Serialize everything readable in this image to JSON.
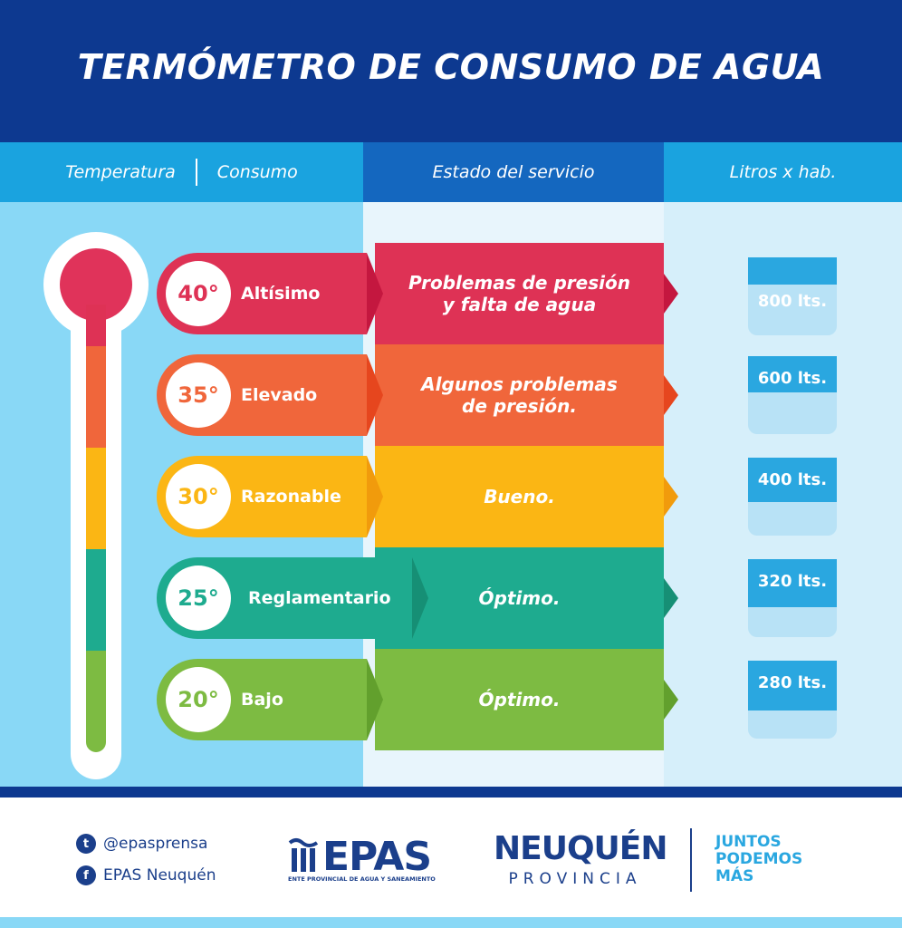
{
  "title": "TERMÓMETRO DE CONSUMO DE AGUA",
  "headers": {
    "temperatura": "Temperatura",
    "consumo": "Consumo",
    "estado": "Estado del servicio",
    "litros": "Litros x hab."
  },
  "rows": [
    {
      "temp": "40°",
      "consumo": "Altísimo",
      "estado": "Problemas de presión\ny falta de agua",
      "litros": "800 lts.",
      "color": "#de3255",
      "dark": "#c4173f",
      "fill": 1.0
    },
    {
      "temp": "35°",
      "consumo": "Elevado",
      "estado": "Algunos problemas\nde presión.",
      "litros": "600 lts.",
      "color": "#f0663b",
      "dark": "#e6461e",
      "fill": 0.75
    },
    {
      "temp": "30°",
      "consumo": "Razonable",
      "estado": "Bueno.",
      "litros": "400 lts.",
      "color": "#fbb614",
      "dark": "#f19b0c",
      "fill": 0.5
    },
    {
      "temp": "25°",
      "consumo": "Reglamentario",
      "estado": "Óptimo.",
      "litros": "320 lts.",
      "color": "#1eab8f",
      "dark": "#168f75",
      "fill": 0.4
    },
    {
      "temp": "20°",
      "consumo": "Bajo",
      "estado": "Óptimo.",
      "litros": "280 lts.",
      "color": "#7dbb42",
      "dark": "#62a02d",
      "fill": 0.35
    }
  ],
  "footer": {
    "twitter": "@epasprensa",
    "facebook": "EPAS Neuquén",
    "epas": "EPAS",
    "epas_sub": "ENTE PROVINCIAL DE AGUA Y SANEAMIENTO",
    "neuquen": "NEUQUÉN",
    "provincia": "PROVINCIA",
    "slogan": [
      "JUNTOS",
      "PODEMOS",
      "MÁS"
    ]
  }
}
